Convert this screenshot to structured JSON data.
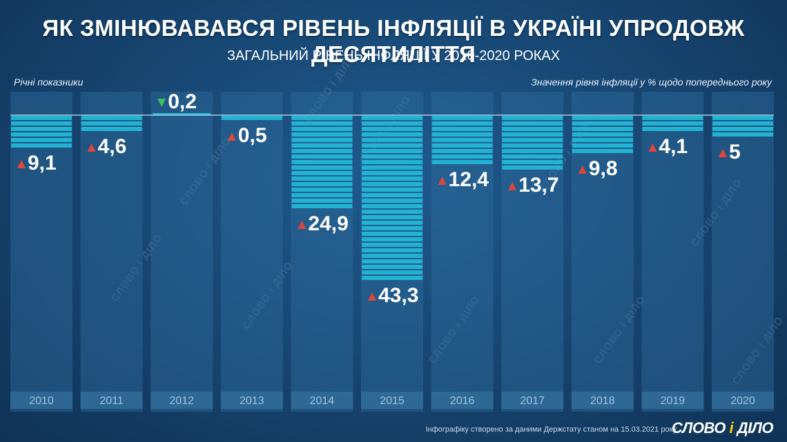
{
  "header": {
    "title": "ЯК ЗМІНЮВАВАВСЯ РІВЕНЬ ІНФЛЯЦІЇ В УКРАЇНІ УПРОДОВЖ ДЕСЯТИЛІТТЯ",
    "subtitle": "ЗАГАЛЬНИЙ РІВЕНЬ ІНФЛЯЦІЇ У 2010-2020 РОКАХ",
    "note_left": "Річні показники",
    "note_right": "Значення рівня інфляції у % щодо попереднього року"
  },
  "footer": {
    "source": "Інфографіку створено за даними Держстату станом на 15.03.2021 року",
    "logo_part1": "СЛОВО",
    "logo_amp": "і",
    "logo_part2": "ДІЛО",
    "watermark": "СЛОВО і ДІЛО"
  },
  "colors": {
    "bar": "#22b3d3",
    "column_bg": "#2f6c9d",
    "up_arrow": "#e0463c",
    "down_arrow": "#3bc35a",
    "baseline": "#bfe6f3"
  },
  "chart_data": {
    "type": "bar",
    "categories": [
      "2010",
      "2011",
      "2012",
      "2013",
      "2014",
      "2015",
      "2016",
      "2017",
      "2018",
      "2019",
      "2020"
    ],
    "values": [
      9.1,
      4.6,
      -0.2,
      0.5,
      24.9,
      43.3,
      12.4,
      13.7,
      9.8,
      4.1,
      5
    ],
    "labels": [
      "9,1",
      "4,6",
      "0,2",
      "0,5",
      "24,9",
      "43,3",
      "12,4",
      "13,7",
      "9,8",
      "4,1",
      "5"
    ],
    "directions": [
      "up",
      "up",
      "down",
      "up",
      "up",
      "up",
      "up",
      "up",
      "up",
      "up",
      "up"
    ],
    "orientation": "bars grow downward from baseline",
    "grid": false,
    "legend": "none"
  }
}
